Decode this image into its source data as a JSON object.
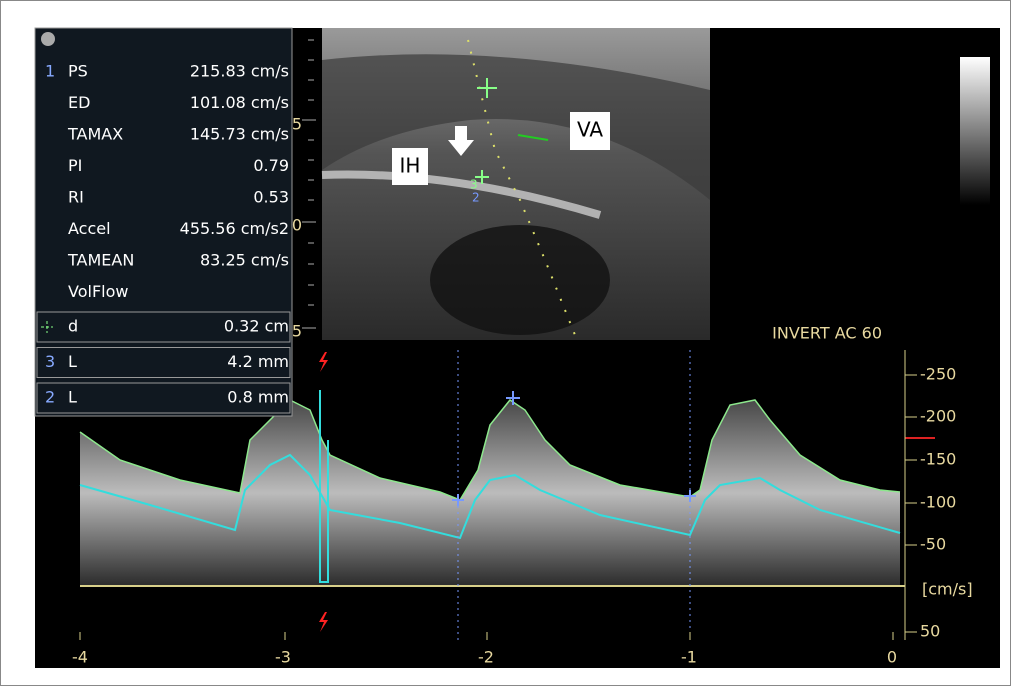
{
  "panel": {
    "group": "1",
    "measurements": [
      {
        "label": "PS",
        "value": "215.83 cm/s"
      },
      {
        "label": "ED",
        "value": "101.08 cm/s"
      },
      {
        "label": "TAMAX",
        "value": "145.73 cm/s"
      },
      {
        "label": "PI",
        "value": "0.79"
      },
      {
        "label": "RI",
        "value": "0.53"
      },
      {
        "label": "Accel",
        "value": "455.56 cm/s2"
      },
      {
        "label": "TAMEAN",
        "value": "83.25 cm/s"
      },
      {
        "label": "VolFlow"
      }
    ],
    "calipers": [
      {
        "label": "d",
        "value": "0.32 cm"
      },
      {
        "index": "3",
        "label": "L",
        "value": "4.2 mm"
      },
      {
        "index": "2",
        "label": "L",
        "value": "0.8 mm"
      }
    ]
  },
  "bmode": {
    "labels": [
      "IH",
      "VA"
    ],
    "caliper_marks": [
      "3",
      "2"
    ],
    "depth_marks": [
      "5",
      "0",
      "5"
    ]
  },
  "doppler": {
    "header": "INVERT AC 60",
    "velocity_scale": [
      "-250",
      "-200",
      "-150",
      "-100",
      "-50",
      "50"
    ],
    "unit": "[cm/s]",
    "time_scale": [
      "-4",
      "-3",
      "-2",
      "-1",
      "0"
    ]
  }
}
